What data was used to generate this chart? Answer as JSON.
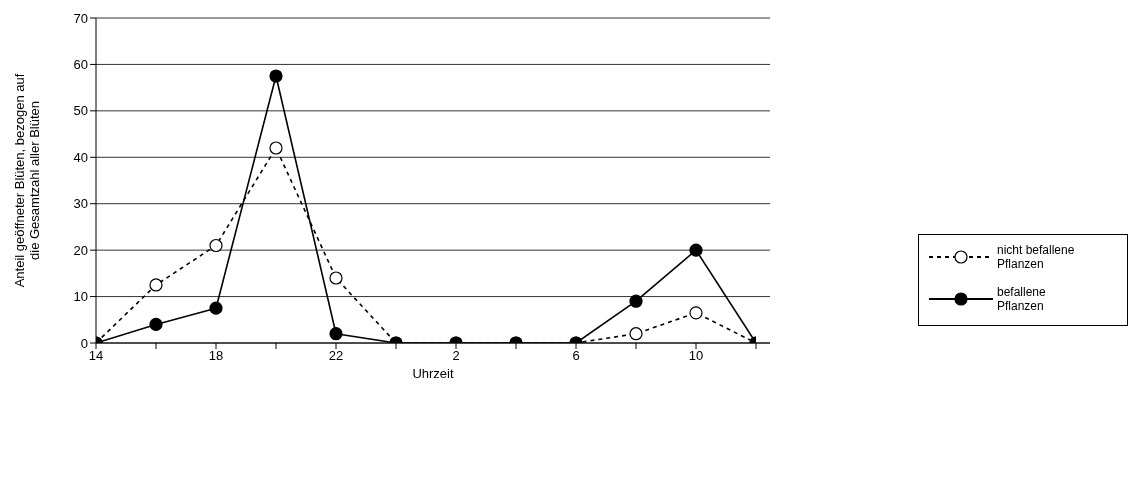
{
  "chart_data": {
    "type": "line",
    "xlabel": "Uhrzeit",
    "ylabel": "Anteil geöffneter Blüten, bezogen auf die Gesamtzahl aller Blüten",
    "categories": [
      "14",
      null,
      "18",
      null,
      "22",
      null,
      "2",
      null,
      "6",
      null,
      "10",
      null
    ],
    "series": [
      {
        "name": "nicht befallene Pflanzen",
        "color": "#000000",
        "line_style": "dashed",
        "values": [
          0,
          12.5,
          21,
          42,
          14,
          0,
          0,
          0,
          0,
          2,
          6.5,
          0
        ]
      },
      {
        "name": "befallene Pflanzen",
        "color": "#000000",
        "line_style": "solid",
        "values": [
          0,
          4,
          7.5,
          57.5,
          2,
          0,
          0,
          0,
          0,
          9,
          20,
          0
        ]
      }
    ],
    "ylim": [
      0,
      70
    ],
    "yticks": [
      0,
      10,
      20,
      30,
      40,
      50,
      60,
      70
    ],
    "grid": "y",
    "legend": "right",
    "marker": "circle"
  }
}
